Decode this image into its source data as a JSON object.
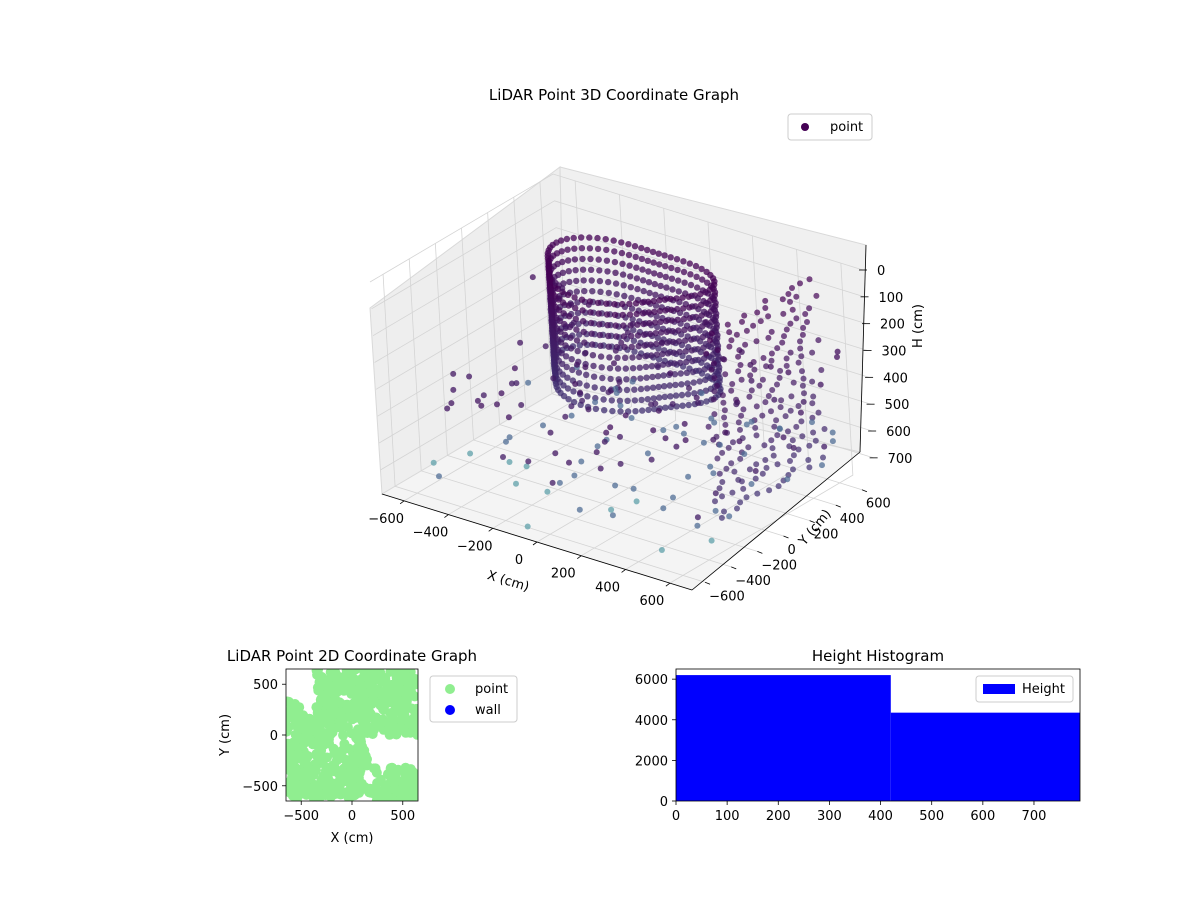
{
  "chart_data": [
    {
      "type": "scatter",
      "title": "LiDAR Point 3D Coordinate Graph",
      "xlabel": "X (cm)",
      "ylabel": "Y (cm)",
      "zlabel": "H (cm)",
      "xlim": [
        -700,
        700
      ],
      "ylim": [
        -700,
        700
      ],
      "zlim": [
        0,
        790
      ],
      "z_inverted": true,
      "x_ticks": [
        "−600",
        "−400",
        "−200",
        "0",
        "200",
        "400",
        "600"
      ],
      "x_tick_values": [
        -600,
        -400,
        -200,
        0,
        200,
        400,
        600
      ],
      "y_ticks": [
        "−600",
        "−400",
        "−200",
        "0",
        "200",
        "400",
        "600"
      ],
      "y_tick_values": [
        -600,
        -400,
        -200,
        0,
        200,
        400,
        600
      ],
      "z_ticks": [
        "0",
        "100",
        "200",
        "300",
        "400",
        "500",
        "600",
        "700"
      ],
      "z_tick_values": [
        0,
        100,
        200,
        300,
        400,
        500,
        600,
        700
      ],
      "legend": {
        "placement": "top-right",
        "entries": [
          "point"
        ],
        "marker_color": "#440154"
      },
      "grid": true,
      "colormap": "viridis-like (color by height)",
      "description_points": "ring-shaped cloud of points around the center with scattered outliers"
    },
    {
      "type": "scatter",
      "title": "LiDAR Point 2D Coordinate Graph",
      "xlabel": "X (cm)",
      "ylabel": "Y (cm)",
      "xlim": [
        -650,
        650
      ],
      "ylim": [
        -650,
        650
      ],
      "x_ticks": [
        "−500",
        "0",
        "500"
      ],
      "x_tick_values": [
        -500,
        0,
        500
      ],
      "y_ticks": [
        "−500",
        "0",
        "500"
      ],
      "y_tick_values": [
        -500,
        0,
        500
      ],
      "legend": {
        "placement": "outside-right",
        "entries": [
          {
            "name": "point",
            "color": "#90ee90"
          },
          {
            "name": "wall",
            "color": "#0000ff"
          }
        ]
      }
    },
    {
      "type": "bar",
      "title": "Height Histogram",
      "xlim": [
        0,
        790
      ],
      "ylim": [
        0,
        6500
      ],
      "bins": [
        {
          "start": 0,
          "end": 420,
          "value": 6200
        },
        {
          "start": 420,
          "end": 790,
          "value": 4350
        }
      ],
      "x_ticks": [
        "0",
        "100",
        "200",
        "300",
        "400",
        "500",
        "600",
        "700"
      ],
      "x_tick_values": [
        0,
        100,
        200,
        300,
        400,
        500,
        600,
        700
      ],
      "y_ticks": [
        "0",
        "2000",
        "4000",
        "6000"
      ],
      "y_tick_values": [
        0,
        2000,
        4000,
        6000
      ],
      "legend": {
        "placement": "top-right",
        "entries": [
          {
            "name": "Height",
            "color": "#0000ff"
          }
        ]
      },
      "bar_color": "#0000ff"
    }
  ]
}
